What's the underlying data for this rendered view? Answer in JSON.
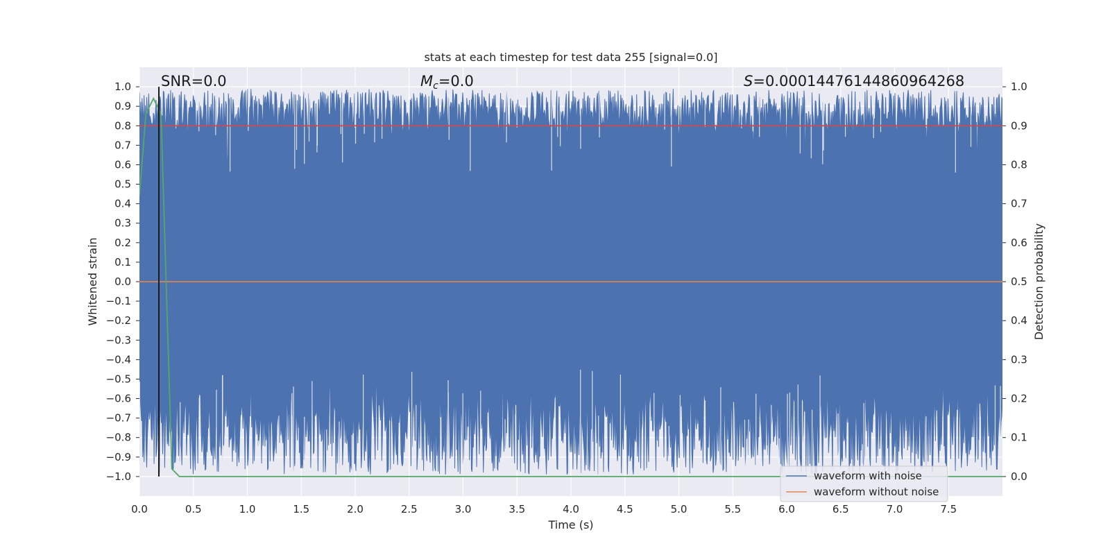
{
  "chart_data": {
    "type": "line",
    "title": "stats at each timestep for test data 255 [signal=0.0]",
    "xlabel": "Time (s)",
    "ylabel": "Whitened strain",
    "y2label": "Detection probability",
    "xlim": [
      0.0,
      8.0
    ],
    "ylim": [
      -1.1,
      1.1
    ],
    "y2lim": [
      -0.05,
      1.05
    ],
    "x_ticks": [
      0.0,
      0.5,
      1.0,
      1.5,
      2.0,
      2.5,
      3.0,
      3.5,
      4.0,
      4.5,
      5.0,
      5.5,
      6.0,
      6.5,
      7.0,
      7.5
    ],
    "x_tick_labels": [
      "0.0",
      "0.5",
      "1.0",
      "1.5",
      "2.0",
      "2.5",
      "3.0",
      "3.5",
      "4.0",
      "4.5",
      "5.0",
      "5.5",
      "6.0",
      "6.5",
      "7.0",
      "7.5"
    ],
    "y_ticks": [
      1.0,
      0.9,
      0.8,
      0.7,
      0.6,
      0.5,
      0.4,
      0.3,
      0.2,
      0.1,
      0.0,
      -0.1,
      -0.2,
      -0.3,
      -0.4,
      -0.5,
      -0.6,
      -0.7,
      -0.8,
      -0.9,
      -1.0
    ],
    "y_tick_labels": [
      "1.0",
      "0.9",
      "0.8",
      "0.7",
      "0.6",
      "0.5",
      "0.4",
      "0.3",
      "0.2",
      "0.1",
      "0.0",
      "−0.1",
      "−0.2",
      "−0.3",
      "−0.4",
      "−0.5",
      "−0.6",
      "−0.7",
      "−0.8",
      "−0.9",
      "−1.0"
    ],
    "y2_ticks": [
      1.0,
      0.9,
      0.8,
      0.7,
      0.6,
      0.5,
      0.4,
      0.3,
      0.2,
      0.1,
      0.0
    ],
    "y2_tick_labels": [
      "1.0",
      "0.9",
      "0.8",
      "0.7",
      "0.6",
      "0.5",
      "0.4",
      "0.3",
      "0.2",
      "0.1",
      "0.0"
    ],
    "grid": true,
    "legend_position": "lower-right",
    "annotations": {
      "snr": "SNR=0.0",
      "mc_symbol": "M",
      "mc_sub": "c",
      "mc_value": "=0.0",
      "s_symbol": "S",
      "s_value": "=0.00014476144860964268"
    },
    "series": [
      {
        "name": "waveform with noise",
        "color": "#4c72b0",
        "axis": "left",
        "description_points": "dense noise filling roughly -1.0 to 1.0",
        "upper_envelope": [
          [
            0.0,
            0.97
          ],
          [
            0.2,
            0.99
          ],
          [
            0.5,
            0.98
          ],
          [
            1.0,
            0.99
          ],
          [
            1.5,
            0.98
          ],
          [
            2.0,
            0.99
          ],
          [
            2.5,
            0.98
          ],
          [
            3.0,
            0.99
          ],
          [
            3.5,
            0.98
          ],
          [
            4.0,
            0.99
          ],
          [
            4.5,
            0.98
          ],
          [
            5.0,
            0.99
          ],
          [
            5.5,
            0.98
          ],
          [
            6.0,
            0.99
          ],
          [
            6.5,
            0.98
          ],
          [
            7.0,
            0.99
          ],
          [
            7.5,
            0.98
          ],
          [
            8.0,
            0.97
          ]
        ],
        "lower_envelope": [
          [
            0.0,
            -0.98
          ],
          [
            0.5,
            -0.99
          ],
          [
            1.0,
            -0.99
          ],
          [
            1.5,
            -0.99
          ],
          [
            2.0,
            -0.99
          ],
          [
            2.5,
            -0.99
          ],
          [
            3.0,
            -0.99
          ],
          [
            3.5,
            -0.99
          ],
          [
            4.0,
            -0.99
          ],
          [
            4.5,
            -0.99
          ],
          [
            5.0,
            -0.99
          ],
          [
            5.5,
            -0.99
          ],
          [
            6.0,
            -0.99
          ],
          [
            6.5,
            -0.99
          ],
          [
            7.0,
            -0.99
          ],
          [
            7.5,
            -0.99
          ],
          [
            8.0,
            -0.97
          ]
        ]
      },
      {
        "name": "waveform without noise",
        "color": "#dd8452",
        "axis": "left",
        "x": [
          0.0,
          8.0
        ],
        "y": [
          0.0,
          0.0
        ]
      },
      {
        "name": "",
        "color": "#c44e52",
        "axis": "right",
        "x": [
          0.0,
          8.0
        ],
        "y": [
          0.9,
          0.9
        ]
      },
      {
        "name": "",
        "color": "#55a868",
        "axis": "right",
        "x": [
          0.0,
          0.06,
          0.13,
          0.2,
          0.3,
          0.37,
          0.5,
          1.0,
          2.0,
          3.0,
          4.0,
          5.0,
          6.0,
          7.0,
          8.0
        ],
        "y": [
          0.72,
          0.93,
          0.97,
          0.93,
          0.02,
          0.0,
          0.0,
          0.0,
          0.0,
          0.0,
          0.0,
          0.0,
          0.0,
          0.0,
          0.0
        ]
      },
      {
        "name": "",
        "color": "#1a1a1a",
        "axis": "left",
        "type": "vline",
        "x": [
          0.18,
          0.18
        ],
        "y": [
          -1.0,
          1.0
        ]
      }
    ]
  }
}
